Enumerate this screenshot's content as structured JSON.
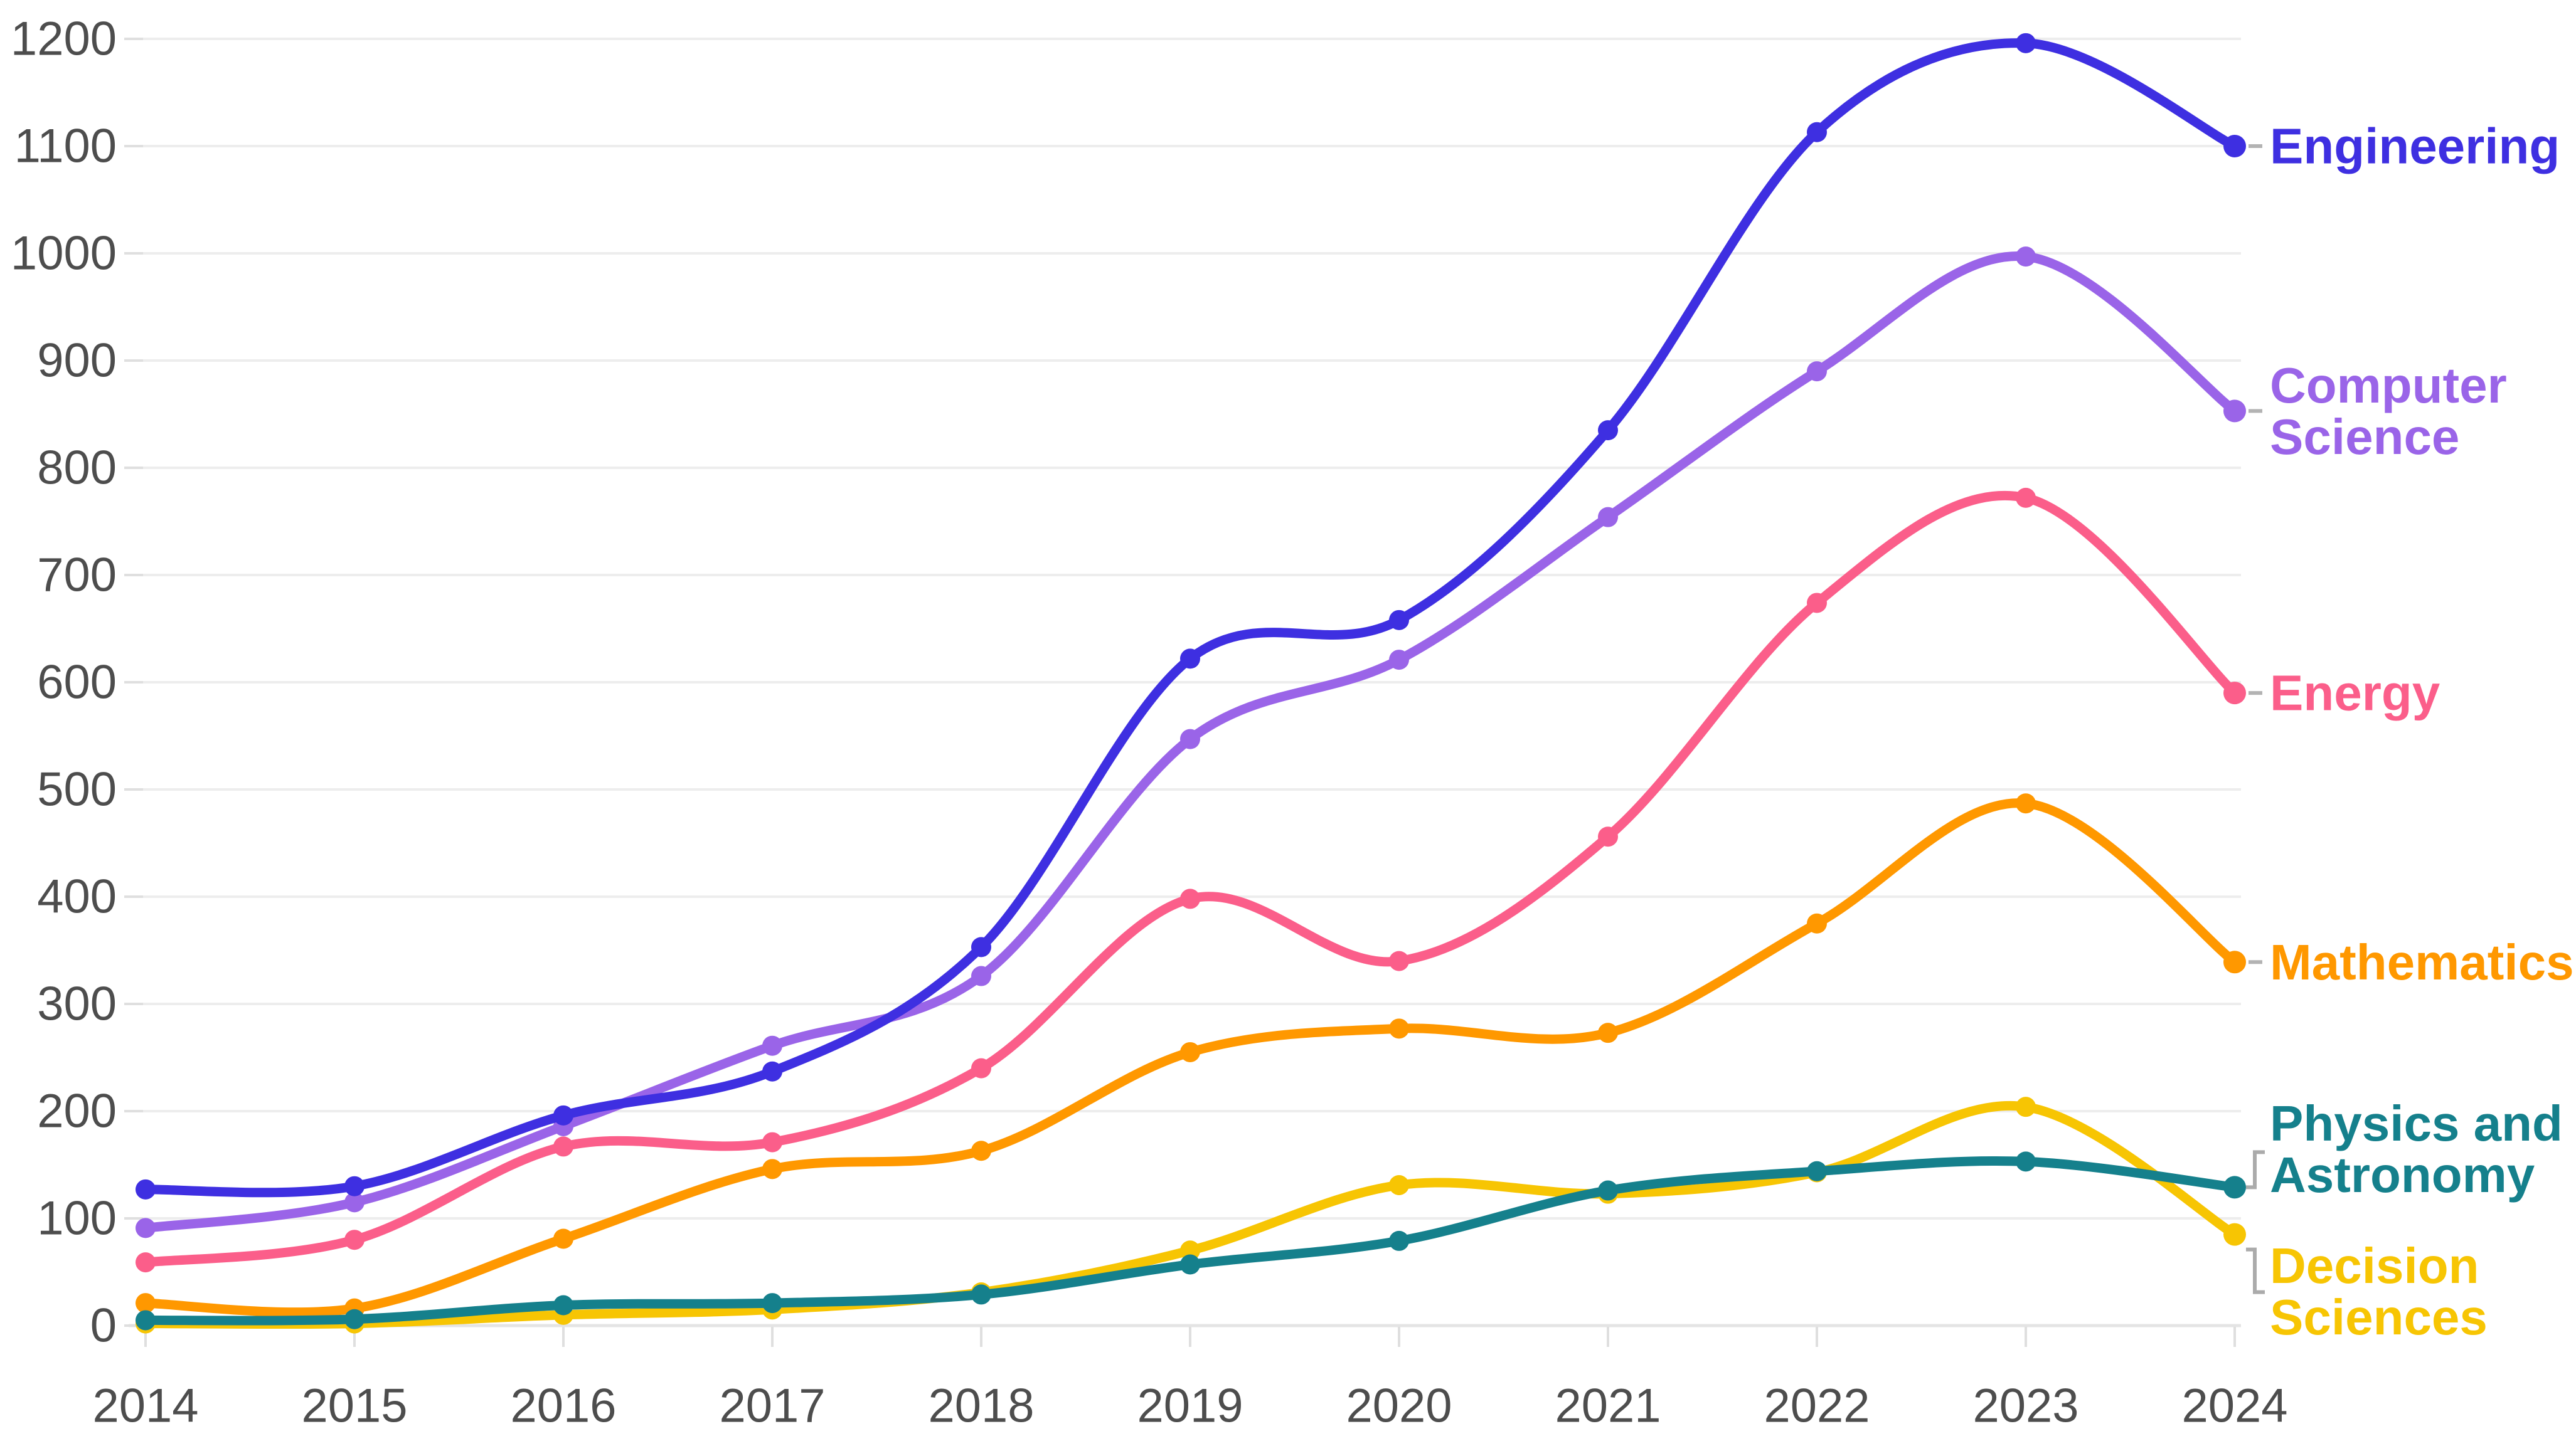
{
  "chart_data": {
    "type": "line",
    "title": "",
    "xlabel": "",
    "ylabel": "",
    "x": [
      2014,
      2015,
      2016,
      2017,
      2018,
      2019,
      2020,
      2021,
      2022,
      2023,
      2024
    ],
    "series": [
      {
        "name": "Engineering",
        "color": "#3E2FE1",
        "label_lines": [
          "Engineering"
        ],
        "connector": "dash",
        "values": [
          127,
          130,
          196,
          237,
          353,
          622,
          658,
          835,
          1113,
          1196,
          1100
        ]
      },
      {
        "name": "Computer Science",
        "color": "#9A64E8",
        "label_lines": [
          "Computer",
          "Science"
        ],
        "connector": "dash",
        "values": [
          91,
          115,
          186,
          261,
          326,
          547,
          621,
          754,
          890,
          997,
          853
        ]
      },
      {
        "name": "Energy",
        "color": "#FB5E8A",
        "label_lines": [
          "Energy"
        ],
        "connector": "dash",
        "values": [
          59,
          80,
          167,
          171,
          240,
          398,
          340,
          456,
          674,
          772,
          590
        ]
      },
      {
        "name": "Mathematics",
        "color": "#FF9800",
        "label_lines": [
          "Mathematics"
        ],
        "connector": "dash",
        "values": [
          21,
          16,
          81,
          146,
          163,
          255,
          277,
          273,
          375,
          487,
          339
        ]
      },
      {
        "name": "Physics and Astronomy",
        "color": "#15808C",
        "label_lines": [
          "Physics and",
          "Astronomy"
        ],
        "connector": "elbow-up",
        "values": [
          5,
          6,
          19,
          21,
          29,
          57,
          79,
          126,
          144,
          153,
          129
        ]
      },
      {
        "name": "Decision Sciences",
        "color": "#F7C503",
        "label_lines": [
          "Decision",
          "Sciences"
        ],
        "connector": "elbow-down",
        "values": [
          2,
          2,
          10,
          15,
          31,
          70,
          131,
          123,
          143,
          204,
          85
        ]
      }
    ],
    "ylim": [
      0,
      1200
    ],
    "ytick_step": 100,
    "grid": "horizontal",
    "legend_position": "right-edge-labels"
  },
  "axes": {
    "x_tick_labels": [
      "2014",
      "2015",
      "2016",
      "2017",
      "2018",
      "2019",
      "2020",
      "2021",
      "2022",
      "2023",
      "2024"
    ],
    "y_tick_labels": [
      "0",
      "100",
      "200",
      "300",
      "400",
      "500",
      "600",
      "700",
      "800",
      "900",
      "1000",
      "1100",
      "1200"
    ]
  },
  "styles": {
    "background": "#ffffff",
    "gridline_color": "#ededed",
    "axisline_color": "#e4e4e4",
    "tick_mark_color": "#dfdfdf",
    "tick_label_color": "#4d4d4d",
    "connector_color": "#b3b3b3",
    "bracket_color": "#ababab"
  }
}
